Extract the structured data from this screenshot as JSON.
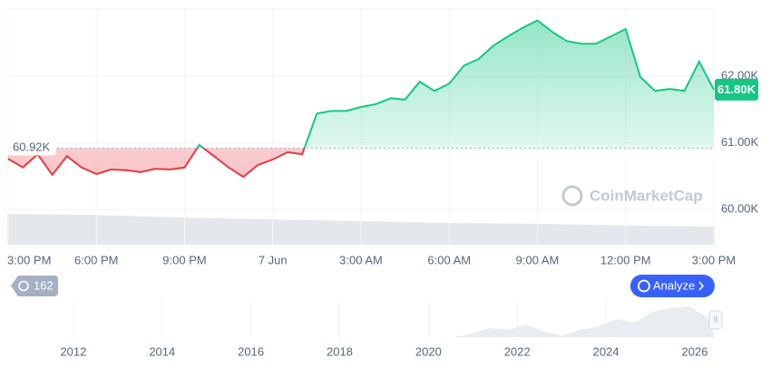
{
  "chart_data": {
    "type": "line",
    "x": [
      0,
      0.5,
      1,
      1.5,
      2,
      2.5,
      3,
      3.5,
      4,
      4.5,
      5,
      5.5,
      6,
      6.5,
      7,
      7.5,
      8,
      8.5,
      9,
      9.5,
      10,
      10.5,
      11,
      11.5,
      12,
      12.5,
      13,
      13.5,
      14,
      14.5,
      15,
      15.5,
      16,
      16.5,
      17,
      17.5,
      18,
      18.5,
      19,
      19.5,
      20,
      20.5,
      21,
      21.5,
      22,
      22.5,
      23,
      23.5,
      24
    ],
    "series": [
      {
        "color": "#16c784",
        "below_color": "#ea3943",
        "values": [
          60.76,
          60.63,
          60.83,
          60.52,
          60.8,
          60.63,
          60.53,
          60.6,
          60.59,
          60.56,
          60.61,
          60.6,
          60.63,
          60.97,
          60.8,
          60.63,
          60.49,
          60.67,
          60.75,
          60.86,
          60.83,
          61.44,
          61.48,
          61.48,
          61.54,
          61.58,
          61.67,
          61.65,
          61.92,
          61.78,
          61.89,
          62.16,
          62.26,
          62.46,
          62.6,
          62.73,
          62.84,
          62.67,
          62.53,
          62.49,
          62.49,
          62.6,
          62.71,
          61.99,
          61.78,
          61.81,
          61.78,
          62.22,
          61.8
        ]
      }
    ],
    "baseline": {
      "value": 60.92,
      "label": "60.92K"
    },
    "last_price": {
      "value": 61.8,
      "label": "61.80K"
    },
    "xlim": [
      0,
      24
    ],
    "xticks": [
      {
        "value": 0,
        "label": "3:00 PM"
      },
      {
        "value": 3,
        "label": "6:00 PM"
      },
      {
        "value": 6,
        "label": "9:00 PM"
      },
      {
        "value": 9,
        "label": "7 Jun"
      },
      {
        "value": 12,
        "label": "3:00 AM"
      },
      {
        "value": 15,
        "label": "6:00 AM"
      },
      {
        "value": 18,
        "label": "9:00 AM"
      },
      {
        "value": 21,
        "label": "12:00 PM"
      },
      {
        "value": 24,
        "label": "3:00 PM"
      }
    ],
    "ylim": [
      59.47,
      63.01
    ],
    "yticks": [
      {
        "value": 60,
        "label": "60.00K"
      },
      {
        "value": 61,
        "label": "61.00K"
      },
      {
        "value": 62,
        "label": "62.00K"
      }
    ]
  },
  "navigator": {
    "xlim": [
      2010.51,
      2026.45
    ],
    "xticks": [
      2012,
      2014,
      2016,
      2018,
      2020,
      2022,
      2024,
      2026
    ]
  },
  "history_badge": 162,
  "analyze_button": "Analyze",
  "watermark": "CoinMarketCap"
}
